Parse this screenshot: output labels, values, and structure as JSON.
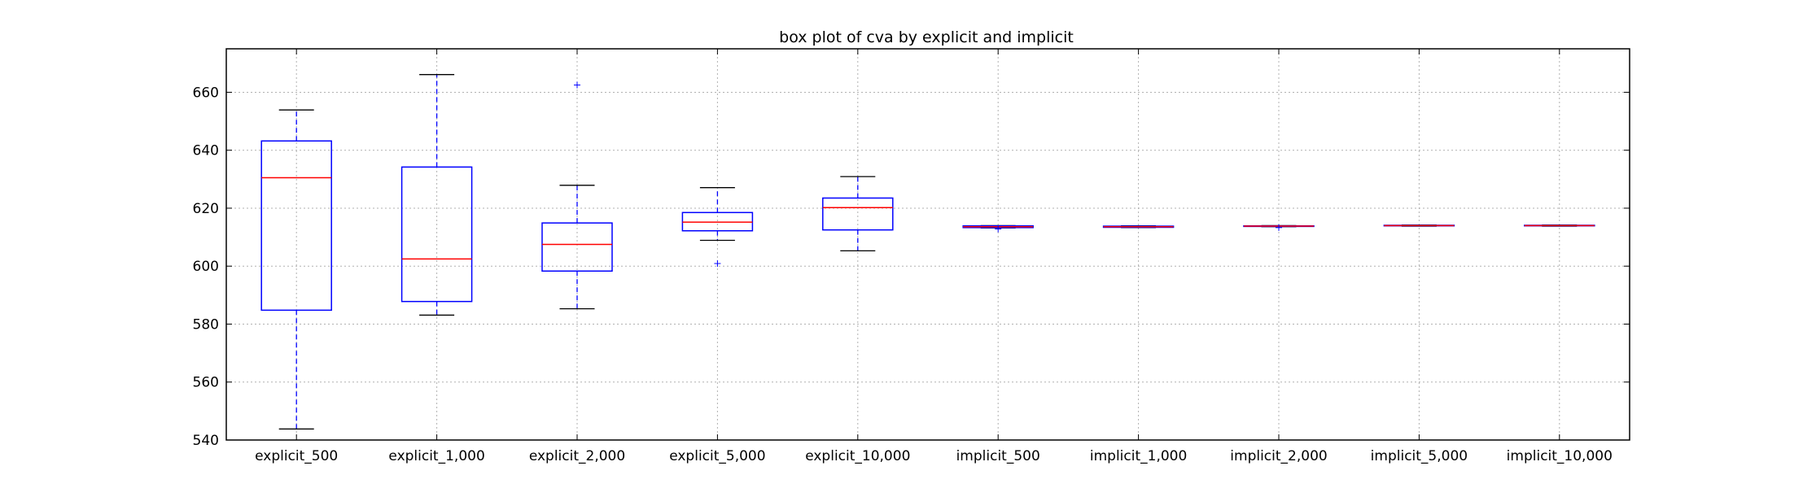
{
  "chart_data": {
    "type": "box",
    "title": "box plot of cva by explicit and implicit",
    "xlabel": "",
    "ylabel": "",
    "ylim": [
      540,
      675
    ],
    "yticks": [
      540,
      560,
      580,
      600,
      620,
      640,
      660
    ],
    "grid": true,
    "colors": {
      "box": "#0000ff",
      "median": "#ff0000",
      "whisker": "#0000ff",
      "cap": "#000000",
      "flier": "#0000ff",
      "grid": "#b0b0b0"
    },
    "categories": [
      "explicit_500",
      "explicit_1,000",
      "explicit_2,000",
      "explicit_5,000",
      "explicit_10,000",
      "implicit_500",
      "implicit_1,000",
      "implicit_2,000",
      "implicit_5,000",
      "implicit_10,000"
    ],
    "boxes": [
      {
        "whislo": 543.8,
        "q1": 584.8,
        "med": 630.5,
        "q3": 643.2,
        "whishi": 653.9,
        "fliers": []
      },
      {
        "whislo": 583.1,
        "q1": 587.8,
        "med": 602.5,
        "q3": 634.2,
        "whishi": 666.1,
        "fliers": []
      },
      {
        "whislo": 585.3,
        "q1": 598.3,
        "med": 607.5,
        "q3": 614.9,
        "whishi": 627.9,
        "fliers": [
          662.5
        ]
      },
      {
        "whislo": 608.9,
        "q1": 612.2,
        "med": 615.2,
        "q3": 618.5,
        "whishi": 627.1,
        "fliers": [
          600.9
        ]
      },
      {
        "whislo": 605.3,
        "q1": 612.5,
        "med": 620.2,
        "q3": 623.5,
        "whishi": 630.9,
        "fliers": []
      },
      {
        "whislo": 613.2,
        "q1": 613.3,
        "med": 613.6,
        "q3": 613.9,
        "whishi": 614.0,
        "fliers": [
          612.8
        ]
      },
      {
        "whislo": 613.3,
        "q1": 613.4,
        "med": 613.6,
        "q3": 613.8,
        "whishi": 613.9,
        "fliers": []
      },
      {
        "whislo": 613.6,
        "q1": 613.7,
        "med": 613.8,
        "q3": 613.9,
        "whishi": 614.0,
        "fliers": [
          613.3
        ]
      },
      {
        "whislo": 613.8,
        "q1": 613.9,
        "med": 614.0,
        "q3": 614.1,
        "whishi": 614.2,
        "fliers": []
      },
      {
        "whislo": 613.8,
        "q1": 613.9,
        "med": 614.0,
        "q3": 614.1,
        "whishi": 614.2,
        "fliers": []
      }
    ]
  }
}
